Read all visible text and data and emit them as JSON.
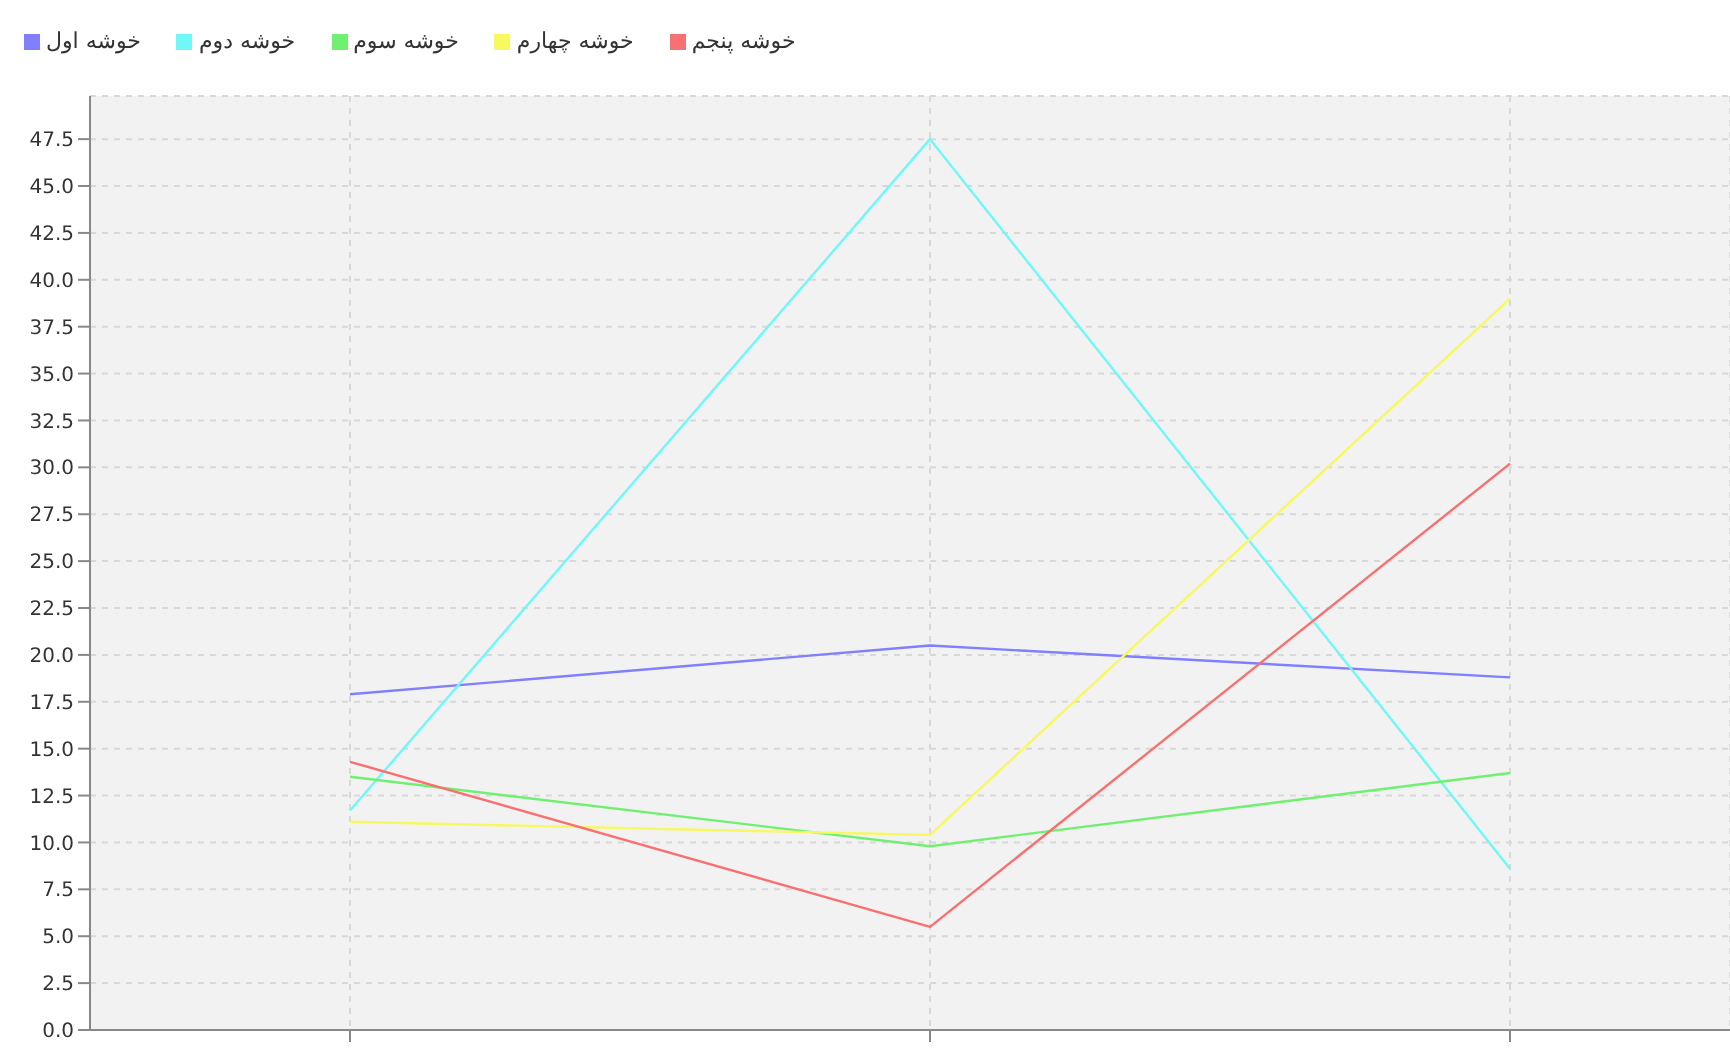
{
  "chart_data": {
    "type": "line",
    "categories": [
      null,
      null,
      null
    ],
    "series": [
      {
        "name": "خوشه اول",
        "color": "#8080ff",
        "values": [
          17.9,
          20.5,
          18.8
        ]
      },
      {
        "name": "خوشه دوم",
        "color": "#70f8f8",
        "values": [
          11.7,
          47.5,
          8.6
        ]
      },
      {
        "name": "خوشه سوم",
        "color": "#70f070",
        "values": [
          13.5,
          9.8,
          13.7
        ]
      },
      {
        "name": "خوشه چهارم",
        "color": "#f8f860",
        "values": [
          11.1,
          10.4,
          39.0
        ]
      },
      {
        "name": "خوشه پنجم",
        "color": "#f87070",
        "values": [
          14.3,
          5.5,
          30.2
        ]
      }
    ],
    "ylim": [
      0,
      49.8
    ],
    "yticks": [
      {
        "value": 0,
        "label": "0.0"
      },
      2.5,
      {
        "value": 5,
        "label": "5.0"
      },
      7.5,
      {
        "value": 10,
        "label": "10.0"
      },
      12.5,
      {
        "value": 15,
        "label": "15.0"
      },
      17.5,
      {
        "value": 20,
        "label": "20.0"
      },
      22.5,
      {
        "value": 25,
        "label": "25.0"
      },
      27.5,
      {
        "value": 30,
        "label": "30.0"
      },
      32.5,
      {
        "value": 35,
        "label": "35.0"
      },
      37.5,
      {
        "value": 40,
        "label": "40.0"
      },
      42.5,
      {
        "value": 45,
        "label": "45.0"
      },
      47.5
    ],
    "grid": true,
    "legend": "top left",
    "marker": "none",
    "line_style": "solid"
  }
}
